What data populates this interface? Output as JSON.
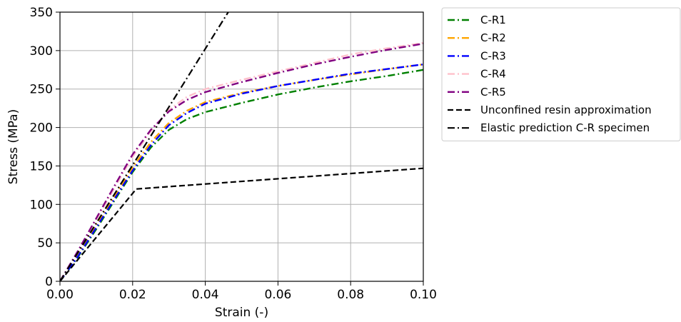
{
  "chart_data": {
    "type": "line",
    "title": "",
    "xlabel": "Strain (-)",
    "ylabel": "Stress (MPa)",
    "xlim": [
      0,
      0.1
    ],
    "ylim": [
      0,
      350
    ],
    "xticks": [
      "0.00",
      "0.02",
      "0.04",
      "0.06",
      "0.08",
      "0.10"
    ],
    "yticks": [
      "0",
      "50",
      "100",
      "150",
      "200",
      "250",
      "300",
      "350"
    ],
    "grid": true,
    "legend_position": "outside-right-top",
    "series": [
      {
        "name": "C-R1",
        "color": "#008000",
        "dash": "dashdot",
        "x": [
          0,
          0.005,
          0.01,
          0.015,
          0.02,
          0.025,
          0.03,
          0.035,
          0.04,
          0.05,
          0.06,
          0.07,
          0.08,
          0.09,
          0.1
        ],
        "y": [
          0,
          32,
          68,
          105,
          142,
          174,
          197,
          211,
          220,
          232,
          243,
          252,
          260,
          267,
          275
        ]
      },
      {
        "name": "C-R2",
        "color": "#ffa500",
        "dash": "dashdot",
        "x": [
          0,
          0.005,
          0.01,
          0.015,
          0.02,
          0.025,
          0.03,
          0.035,
          0.04,
          0.05,
          0.06,
          0.07,
          0.08,
          0.09,
          0.1
        ],
        "y": [
          0,
          34,
          72,
          110,
          148,
          181,
          206,
          222,
          233,
          245,
          254,
          262,
          269,
          276,
          282
        ]
      },
      {
        "name": "C-R3",
        "color": "#0000ff",
        "dash": "dashdot",
        "x": [
          0,
          0.005,
          0.01,
          0.015,
          0.02,
          0.025,
          0.03,
          0.035,
          0.04,
          0.05,
          0.06,
          0.07,
          0.08,
          0.09,
          0.1
        ],
        "y": [
          0,
          33,
          70,
          107,
          144,
          177,
          203,
          219,
          231,
          244,
          254,
          262,
          270,
          276,
          282
        ]
      },
      {
        "name": "C-R4",
        "color": "#ffc0cb",
        "dash": "dashdot",
        "x": [
          0,
          0.005,
          0.01,
          0.015,
          0.02,
          0.025,
          0.03,
          0.035,
          0.04,
          0.05,
          0.06,
          0.07,
          0.08,
          0.09,
          0.1
        ],
        "y": [
          0,
          39,
          80,
          121,
          162,
          195,
          223,
          240,
          250,
          262,
          273,
          284,
          295,
          303,
          310
        ]
      },
      {
        "name": "C-R5",
        "color": "#800080",
        "dash": "dashdot",
        "x": [
          0,
          0.005,
          0.01,
          0.015,
          0.02,
          0.025,
          0.03,
          0.035,
          0.04,
          0.05,
          0.06,
          0.07,
          0.08,
          0.09,
          0.1
        ],
        "y": [
          0,
          40,
          82,
          124,
          165,
          197,
          221,
          236,
          246,
          259,
          271,
          282,
          292,
          301,
          309
        ]
      },
      {
        "name": "Unconfined resin approximation",
        "color": "#000000",
        "dash": "dashed",
        "x": [
          0,
          0.021,
          0.1
        ],
        "y": [
          0,
          120,
          147
        ]
      },
      {
        "name": "Elastic prediction C-R specimen",
        "color": "#000000",
        "dash": "dashdot",
        "x": [
          0,
          0.0463
        ],
        "y": [
          0,
          350
        ]
      }
    ]
  }
}
